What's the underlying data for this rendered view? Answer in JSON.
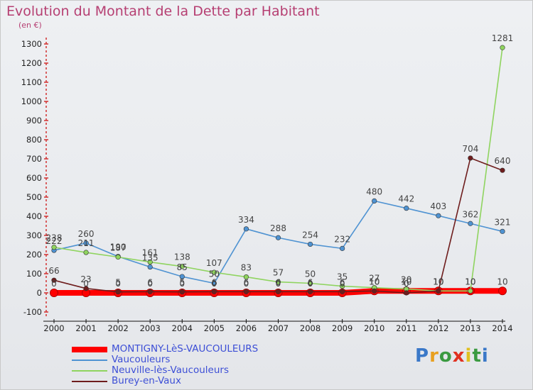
{
  "title": "Evolution du Montant de la Dette par Habitant",
  "unit": "(en €)",
  "logo": {
    "text": "Proxiti",
    "letter_colors": [
      "#3a78c8",
      "#e8a020",
      "#3a9a40",
      "#e03020",
      "#e0c020",
      "#3a9a40",
      "#3a78c8"
    ]
  },
  "chart_data": {
    "type": "line",
    "title": "Evolution du Montant de la Dette par Habitant",
    "ylabel": "(en €)",
    "x": [
      2000,
      2001,
      2002,
      2003,
      2004,
      2005,
      2006,
      2007,
      2008,
      2009,
      2010,
      2011,
      2012,
      2013,
      2014
    ],
    "y_ticks": [
      -100,
      0,
      100,
      200,
      300,
      400,
      500,
      600,
      700,
      800,
      900,
      1000,
      1100,
      1200,
      1300
    ],
    "ylim": [
      -100,
      1300
    ],
    "grid": false,
    "legend_position": "bottom-left",
    "series": [
      {
        "name": "MONTIGNY-LèS-VAUCOULEURS",
        "color": "#ff0000",
        "values": [
          0,
          0,
          0,
          0,
          0,
          0,
          0,
          0,
          0,
          0,
          10,
          10,
          10,
          10,
          10
        ],
        "labels": [
          "0",
          "0",
          "0",
          "0",
          "0",
          "0",
          "0",
          "0",
          "0",
          "0",
          "10",
          "10",
          "10",
          "10",
          "10"
        ]
      },
      {
        "name": "Vaucouleurs",
        "color": "#4f93d2",
        "values": [
          222,
          260,
          190,
          135,
          85,
          50,
          334,
          288,
          254,
          232,
          480,
          442,
          403,
          362,
          321
        ],
        "labels": [
          "222",
          "260",
          "190",
          "135",
          "85",
          "50",
          "334",
          "288",
          "254",
          "232",
          "480",
          "442",
          "403",
          "362",
          "321"
        ]
      },
      {
        "name": "Neuville-lès-Vaucouleurs",
        "color": "#8fd45f",
        "values": [
          238,
          211,
          187,
          161,
          138,
          107,
          83,
          57,
          50,
          35,
          27,
          20,
          10,
          10,
          1281
        ],
        "labels": [
          "238",
          "211",
          "187",
          "161",
          "138",
          "107",
          "83",
          "57",
          "50",
          "35",
          "27",
          "20",
          "10",
          "10",
          "1281"
        ]
      },
      {
        "name": "Burey-en-Vaux",
        "color": "#6e1d1d",
        "values": [
          66,
          23,
          5,
          6,
          5,
          6,
          6,
          6,
          6,
          6,
          10,
          0,
          10,
          704,
          640
        ],
        "labels": [
          "66",
          "23",
          "5",
          "6",
          "5",
          "6",
          "6",
          "6",
          "6",
          "6",
          "10",
          "0",
          "10",
          "704",
          "640"
        ]
      }
    ]
  }
}
